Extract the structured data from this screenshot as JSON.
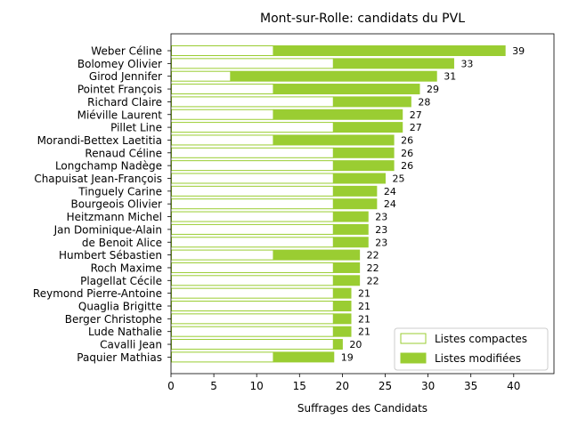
{
  "chart_data": {
    "type": "bar",
    "orientation": "horizontal",
    "stacked": true,
    "title": "Mont-sur-Rolle: candidats du PVL",
    "xlabel": "Suffrages des Candidats",
    "ylabel": "",
    "xlim": [
      0,
      44.7
    ],
    "xticks": [
      0,
      5,
      10,
      15,
      20,
      25,
      30,
      35,
      40
    ],
    "grid": false,
    "legend_position": "bottom-right",
    "colors": {
      "compact": "#9acd32",
      "modified": "#9acd32",
      "compact_fill": "#ffffff"
    },
    "categories": [
      "Weber Céline",
      "Bolomey Olivier",
      "Girod Jennifer",
      "Pointet François",
      "Richard Claire",
      "Miéville Laurent",
      "Pillet Line",
      "Morandi-Bettex Laetitia",
      "Renaud Céline",
      "Longchamp Nadège",
      "Chapuisat Jean-François",
      "Tinguely Carine",
      "Bourgeois Olivier",
      "Heitzmann Michel",
      "Jan Dominique-Alain",
      "de Benoit Alice",
      "Humbert Sébastien",
      "Roch Maxime",
      "Plagellat Cécile",
      "Reymond Pierre-Antoine",
      "Quaglia Brigitte",
      "Berger Christophe",
      "Lude Nathalie",
      "Cavalli Jean",
      "Paquier Mathias"
    ],
    "series": [
      {
        "name": "Listes compactes",
        "values": [
          12,
          19,
          7,
          12,
          19,
          12,
          19,
          12,
          19,
          19,
          19,
          19,
          19,
          19,
          19,
          19,
          12,
          19,
          19,
          19,
          19,
          19,
          19,
          19,
          12
        ]
      },
      {
        "name": "Listes modifiées",
        "values": [
          27,
          14,
          24,
          17,
          9,
          15,
          8,
          14,
          7,
          7,
          6,
          5,
          5,
          4,
          4,
          4,
          10,
          3,
          3,
          2,
          2,
          2,
          2,
          1,
          7
        ]
      }
    ],
    "totals": [
      39,
      33,
      31,
      29,
      28,
      27,
      27,
      26,
      26,
      26,
      25,
      24,
      24,
      23,
      23,
      23,
      22,
      22,
      22,
      21,
      21,
      21,
      21,
      20,
      19
    ]
  }
}
